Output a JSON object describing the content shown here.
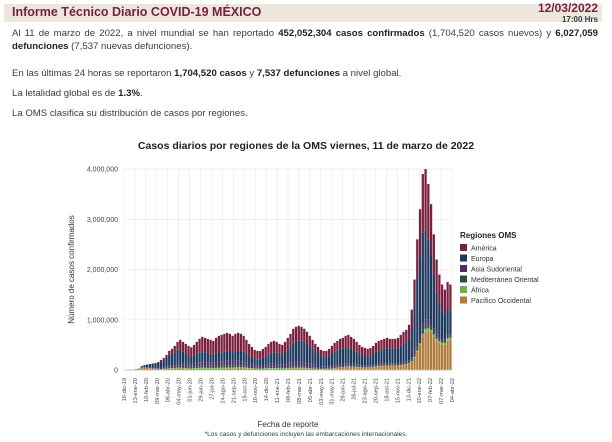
{
  "header": {
    "title": "Informe Técnico Diario COVID-19 MÉXICO",
    "date": "12/03/2022",
    "time": "17:00 Hrs"
  },
  "text": {
    "p1_a": "Al 11 de marzo de 2022, a nivel mundial se han reportado ",
    "p1_b": "452,052,304 casos confirmados",
    "p1_c": " (1,704,520 casos nuevos) y ",
    "p1_d": "6,027,059 defunciones",
    "p1_e": " (7,537 nuevas defunciones).",
    "p2_a": "En las últimas 24 horas se reportaron ",
    "p2_b": "1,704,520 casos",
    "p2_c": " y ",
    "p2_d": "7,537 defunciones",
    "p2_e": " a nivel global.",
    "p3_a": "La letalidad global es de ",
    "p3_b": "1.3%",
    "p3_c": ".",
    "p4": "La OMS clasifica su distribución de casos por regiones."
  },
  "footnote": "*Los casos y defunciones incluyen las embarcaciones internacionales.",
  "chart_data": {
    "type": "bar",
    "stacked": true,
    "title": "Casos diarios por regiones de la OMS viernes, 11 de marzo de 2022",
    "xlabel": "Fecha de reporte",
    "ylabel": "Número de casos confirmados",
    "ylim": [
      0,
      4000000
    ],
    "yticks": [
      0,
      1000000,
      2000000,
      3000000,
      4000000
    ],
    "ytick_labels": [
      "0",
      "1,000,000",
      "2,000,000",
      "3,000,000",
      "4,000,000"
    ],
    "xtick_labels": [
      "16-dic-19",
      "13-ene-20",
      "10-feb-20",
      "09-mar-20",
      "06-abr-20",
      "04-may-20",
      "01-jun-20",
      "29-jun-20",
      "27-jul-20",
      "24-ago-20",
      "21-sep-20",
      "19-oct-20",
      "16-nov-20",
      "14-dic-20",
      "11-ene-21",
      "08-feb-21",
      "08-mar-21",
      "05-abr-21",
      "03-may-21",
      "31-may-21",
      "28-jun-21",
      "26-jul-21",
      "23-ago-21",
      "20-sep-21",
      "18-oct-21",
      "15-nov-21",
      "13-dic-21",
      "10-ene-22",
      "07-feb-22",
      "07-mar-22",
      "04-abr-22"
    ],
    "grid": true,
    "legend": {
      "title": "Regiones OMS",
      "placement": "right"
    },
    "series": [
      {
        "name": "América",
        "color": "#7a1f3d"
      },
      {
        "name": "Europa",
        "color": "#1f3a5f"
      },
      {
        "name": "Asia Sudoriental",
        "color": "#4a2f6b"
      },
      {
        "name": "Mediterráneo Oriental",
        "color": "#2f4f3a"
      },
      {
        "name": "África",
        "color": "#6fb04a"
      },
      {
        "name": "Pacífico Occidental",
        "color": "#b07a3a"
      }
    ],
    "weekly_totals": [
      0,
      0,
      5000,
      10000,
      18000,
      30000,
      80000,
      100000,
      110000,
      120000,
      130000,
      140000,
      160000,
      200000,
      240000,
      300000,
      380000,
      420000,
      480000,
      560000,
      600000,
      560000,
      520000,
      480000,
      450000,
      500000,
      560000,
      620000,
      660000,
      640000,
      620000,
      600000,
      580000,
      640000,
      680000,
      700000,
      720000,
      740000,
      720000,
      680000,
      720000,
      740000,
      720000,
      680000,
      600000,
      520000,
      460000,
      400000,
      380000,
      380000,
      420000,
      460000,
      520000,
      560000,
      580000,
      560000,
      520000,
      500000,
      560000,
      640000,
      720000,
      820000,
      860000,
      880000,
      860000,
      820000,
      760000,
      680000,
      600000,
      520000,
      460000,
      400000,
      380000,
      380000,
      420000,
      480000,
      540000,
      580000,
      620000,
      640000,
      680000,
      700000,
      660000,
      620000,
      560000,
      500000,
      460000,
      440000,
      420000,
      440000,
      480000,
      540000,
      580000,
      600000,
      620000,
      640000,
      620000,
      620000,
      620000,
      640000,
      700000,
      760000,
      800000,
      900000,
      1200000,
      1800000,
      2600000,
      3200000,
      3900000,
      4000000,
      3700000,
      3300000,
      2700000,
      2200000,
      1900000,
      1700000,
      1600000,
      1750000,
      1700000
    ],
    "weekly_shares": [
      [
        0,
        0,
        0,
        0,
        0,
        1
      ],
      [
        0.1,
        0.7,
        0.05,
        0.05,
        0.02,
        0.08
      ],
      [
        0.4,
        0.35,
        0.1,
        0.08,
        0.03,
        0.04
      ],
      [
        0.5,
        0.25,
        0.12,
        0.06,
        0.04,
        0.03
      ],
      [
        0.45,
        0.3,
        0.12,
        0.05,
        0.03,
        0.05
      ],
      [
        0.35,
        0.45,
        0.1,
        0.04,
        0.02,
        0.04
      ],
      [
        0.28,
        0.55,
        0.08,
        0.04,
        0.01,
        0.04
      ],
      [
        0.36,
        0.44,
        0.06,
        0.03,
        0.01,
        0.1
      ],
      [
        0.32,
        0.46,
        0.05,
        0.03,
        0.01,
        0.13
      ],
      [
        0.3,
        0.5,
        0.03,
        0.02,
        0.01,
        0.14
      ],
      [
        0.3,
        0.28,
        0.02,
        0.02,
        0.03,
        0.35
      ]
    ]
  }
}
